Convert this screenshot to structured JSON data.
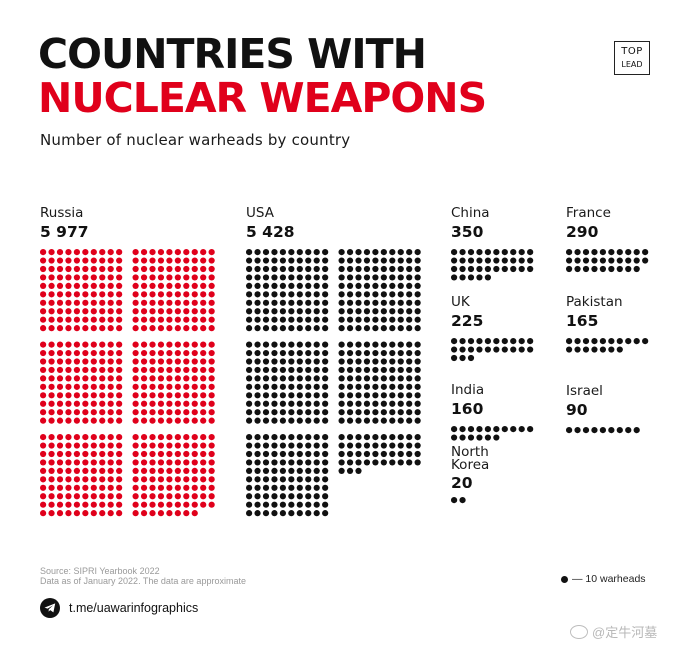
{
  "header": {
    "title_line1": "COUNTRIES WITH",
    "title_line2": "NUCLEAR WEAPONS",
    "subtitle": "Number of nuclear warheads by country",
    "logo_line1": "TOP",
    "logo_line2": "LEAD"
  },
  "chart_data": {
    "type": "dot-matrix",
    "title": "COUNTRIES WITH NUCLEAR WEAPONS",
    "subtitle": "Number of nuclear warheads by country",
    "unit_per_dot": 10,
    "countries": [
      {
        "name": "Russia",
        "label": "5 977",
        "value": 5977,
        "color": "#e0001b"
      },
      {
        "name": "USA",
        "label": "5 428",
        "value": 5428,
        "color": "#111111"
      },
      {
        "name": "China",
        "label": "350",
        "value": 350,
        "color": "#111111"
      },
      {
        "name": "France",
        "label": "290",
        "value": 290,
        "color": "#111111"
      },
      {
        "name": "UK",
        "label": "225",
        "value": 225,
        "color": "#111111"
      },
      {
        "name": "Pakistan",
        "label": "165",
        "value": 165,
        "color": "#111111"
      },
      {
        "name": "India",
        "label": "160",
        "value": 160,
        "color": "#111111"
      },
      {
        "name": "Israel",
        "label": "90",
        "value": 90,
        "color": "#111111"
      },
      {
        "name": "North Korea",
        "label": "20",
        "value": 20,
        "color": "#111111"
      }
    ]
  },
  "legend": {
    "label": "— 10 warheads"
  },
  "footer": {
    "source": "Source: SIPRI Yearbook 2022",
    "asof": "Data as of January 2022. The data are approximate",
    "link": "t.me/uawarinfographics"
  },
  "watermark": "@定牛河墓",
  "colors": {
    "accent": "#e0001b",
    "ink": "#111111"
  }
}
